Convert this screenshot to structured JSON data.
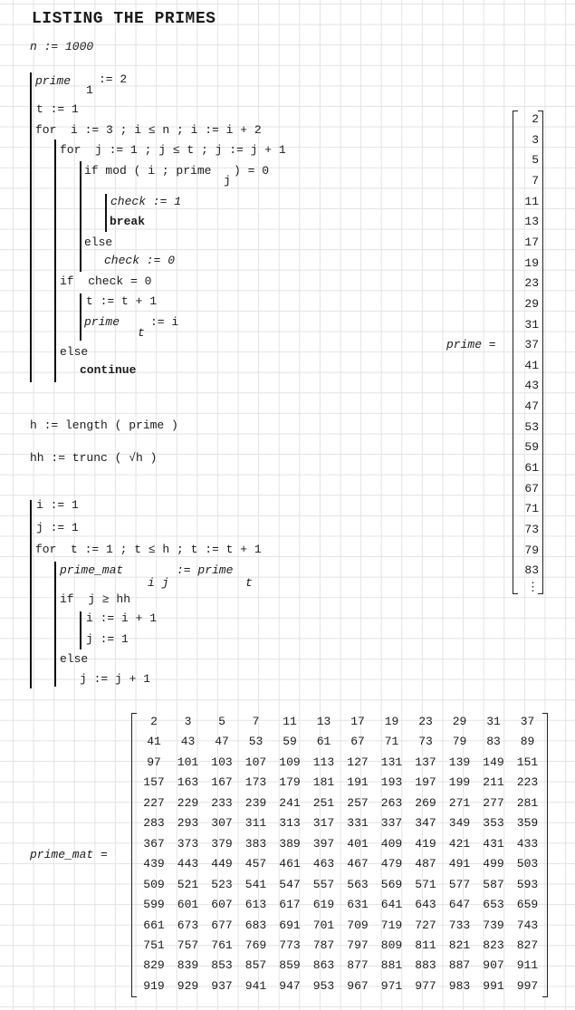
{
  "title": "LISTING THE PRIMES",
  "n_def": "n := 1000",
  "block1": {
    "l1": "prime",
    "l1_sub": "1",
    "l1_rest": ":= 2",
    "l2": "t := 1",
    "l3": "for  i := 3 ; i ≤ n ; i := i + 2",
    "l4": "for  j := 1 ; j ≤ t ; j := j + 1",
    "l5": "if mod ( i ; prime",
    "l5_sub": "j",
    "l5_rest": ") = 0",
    "l6": "check := 1",
    "l7": "break",
    "l8": "else",
    "l9": "check := 0",
    "l10": "if  check = 0",
    "l11": "t := t + 1",
    "l12": "prime",
    "l12_sub": "t",
    "l12_rest": ":= i",
    "l13": "else",
    "l14": "continue"
  },
  "h_def": "h := length ( prime )",
  "hh_def": "hh := trunc ( √h )",
  "block2": {
    "l1": "i := 1",
    "l2": "j := 1",
    "l3": "for  t := 1 ; t ≤ h ; t := t + 1",
    "l4": "prime_mat",
    "l4_sub": "i j",
    "l4_rest": ":= prime",
    "l4_sub2": "t",
    "l5": "if  j ≥ hh",
    "l6": "i := i + 1",
    "l7": "j := 1",
    "l8": "else",
    "l9": "j := j + 1"
  },
  "prime_vector": {
    "label": "prime =",
    "values": [
      2,
      3,
      5,
      7,
      11,
      13,
      17,
      19,
      23,
      29,
      31,
      37,
      41,
      43,
      47,
      53,
      59,
      61,
      67,
      71,
      73,
      79,
      83
    ],
    "ellipsis": "⋮"
  },
  "prime_mat": {
    "label": "prime_mat =",
    "rows": [
      [
        2,
        3,
        5,
        7,
        11,
        13,
        17,
        19,
        23,
        29,
        31,
        37
      ],
      [
        41,
        43,
        47,
        53,
        59,
        61,
        67,
        71,
        73,
        79,
        83,
        89
      ],
      [
        97,
        101,
        103,
        107,
        109,
        113,
        127,
        131,
        137,
        139,
        149,
        151
      ],
      [
        157,
        163,
        167,
        173,
        179,
        181,
        191,
        193,
        197,
        199,
        211,
        223
      ],
      [
        227,
        229,
        233,
        239,
        241,
        251,
        257,
        263,
        269,
        271,
        277,
        281
      ],
      [
        283,
        293,
        307,
        311,
        313,
        317,
        331,
        337,
        347,
        349,
        353,
        359
      ],
      [
        367,
        373,
        379,
        383,
        389,
        397,
        401,
        409,
        419,
        421,
        431,
        433
      ],
      [
        439,
        443,
        449,
        457,
        461,
        463,
        467,
        479,
        487,
        491,
        499,
        503
      ],
      [
        509,
        521,
        523,
        541,
        547,
        557,
        563,
        569,
        571,
        577,
        587,
        593
      ],
      [
        599,
        601,
        607,
        613,
        617,
        619,
        631,
        641,
        643,
        647,
        653,
        659
      ],
      [
        661,
        673,
        677,
        683,
        691,
        701,
        709,
        719,
        727,
        733,
        739,
        743
      ],
      [
        751,
        757,
        761,
        769,
        773,
        787,
        797,
        809,
        811,
        821,
        823,
        827
      ],
      [
        829,
        839,
        853,
        857,
        859,
        863,
        877,
        881,
        883,
        887,
        907,
        911
      ],
      [
        919,
        929,
        937,
        941,
        947,
        953,
        967,
        971,
        977,
        983,
        991,
        997
      ]
    ]
  }
}
